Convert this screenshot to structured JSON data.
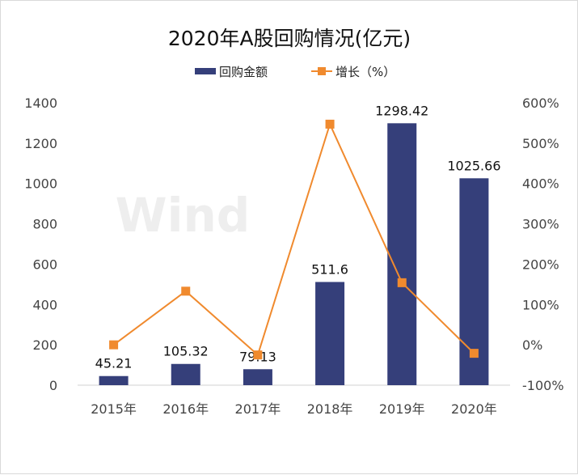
{
  "chart_data": {
    "type": "bar+line",
    "title": "2020年A股回购情况(亿元)",
    "categories": [
      "2015年",
      "2016年",
      "2017年",
      "2018年",
      "2019年",
      "2020年"
    ],
    "series": [
      {
        "name": "回购金额",
        "type": "bar",
        "axis": "left",
        "color": "#353f7a",
        "values": [
          45.21,
          105.32,
          79.13,
          511.6,
          1298.42,
          1025.66
        ],
        "labels": [
          "45.21",
          "105.32",
          "79.13",
          "511.6",
          "1298.42",
          "1025.66"
        ]
      },
      {
        "name": "增长（%）",
        "type": "line",
        "axis": "right",
        "color": "#f08a2e",
        "values": [
          0,
          133,
          -25,
          547,
          154,
          -21
        ]
      }
    ],
    "y_left": {
      "lim": [
        0,
        1400
      ],
      "ticks": [
        "0",
        "200",
        "400",
        "600",
        "800",
        "1000",
        "1200",
        "1400"
      ]
    },
    "y_right": {
      "lim": [
        -100,
        600
      ],
      "ticks": [
        "-100%",
        "0%",
        "100%",
        "200%",
        "300%",
        "400%",
        "500%",
        "600%"
      ]
    },
    "legend": "top",
    "grid": false,
    "watermark": "Wind"
  }
}
